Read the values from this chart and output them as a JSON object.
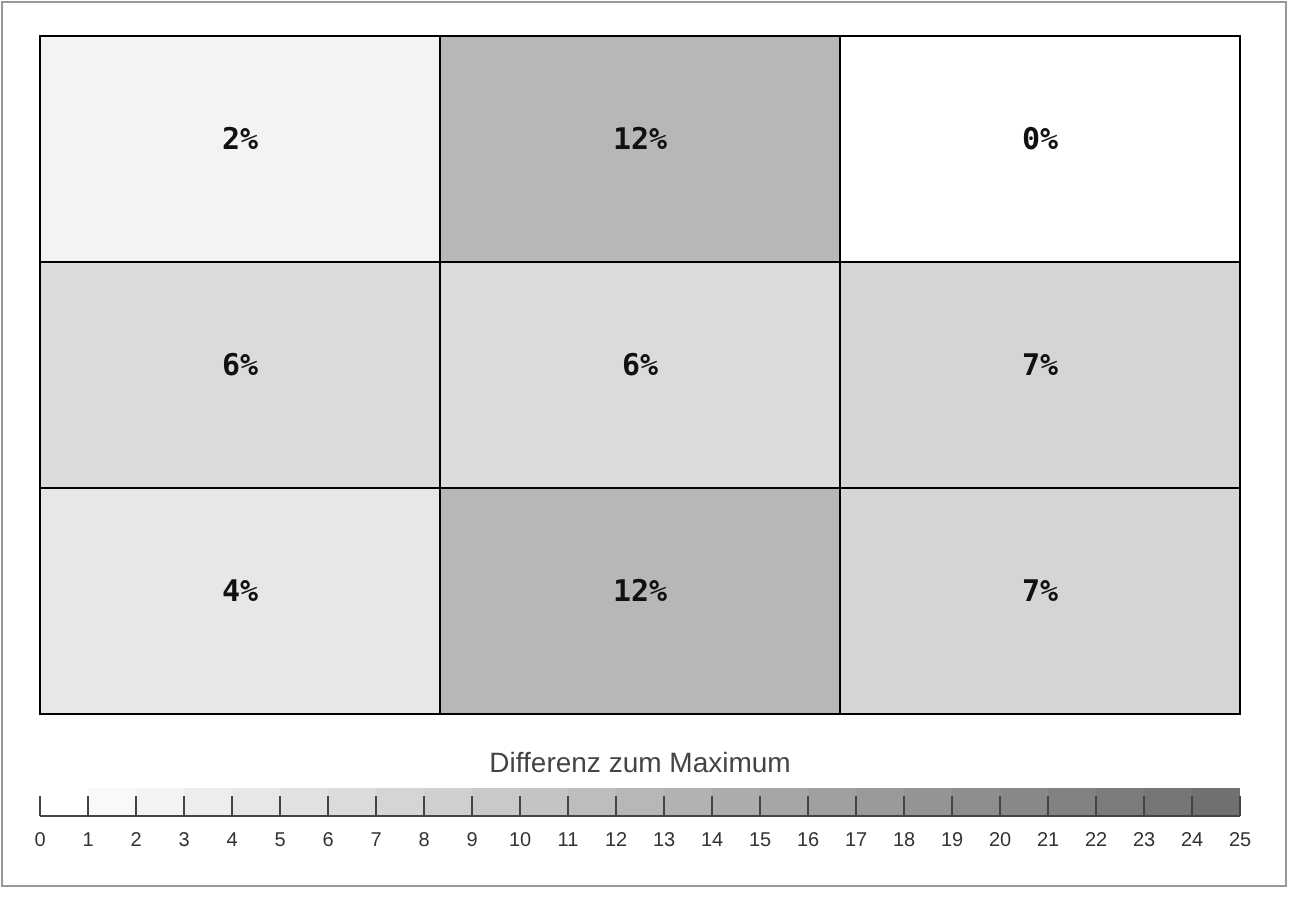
{
  "chart_data": {
    "type": "heatmap",
    "clabel": "Differenz zum Maximum",
    "categories": [
      null,
      null,
      null
    ],
    "y_categories": [
      null,
      null,
      null
    ],
    "cells": [
      [
        2,
        12,
        0
      ],
      [
        6,
        6,
        7
      ],
      [
        4,
        12,
        7
      ]
    ],
    "cell_labels": [
      [
        "2%",
        "12%",
        "0%"
      ],
      [
        "6%",
        "6%",
        "7%"
      ],
      [
        "4%",
        "12%",
        "7%"
      ]
    ],
    "clim": [
      0,
      25
    ],
    "cticks": [
      0,
      1,
      2,
      3,
      4,
      5,
      6,
      7,
      8,
      9,
      10,
      11,
      12,
      13,
      14,
      15,
      16,
      17,
      18,
      19,
      20,
      21,
      22,
      23,
      24,
      25
    ]
  }
}
